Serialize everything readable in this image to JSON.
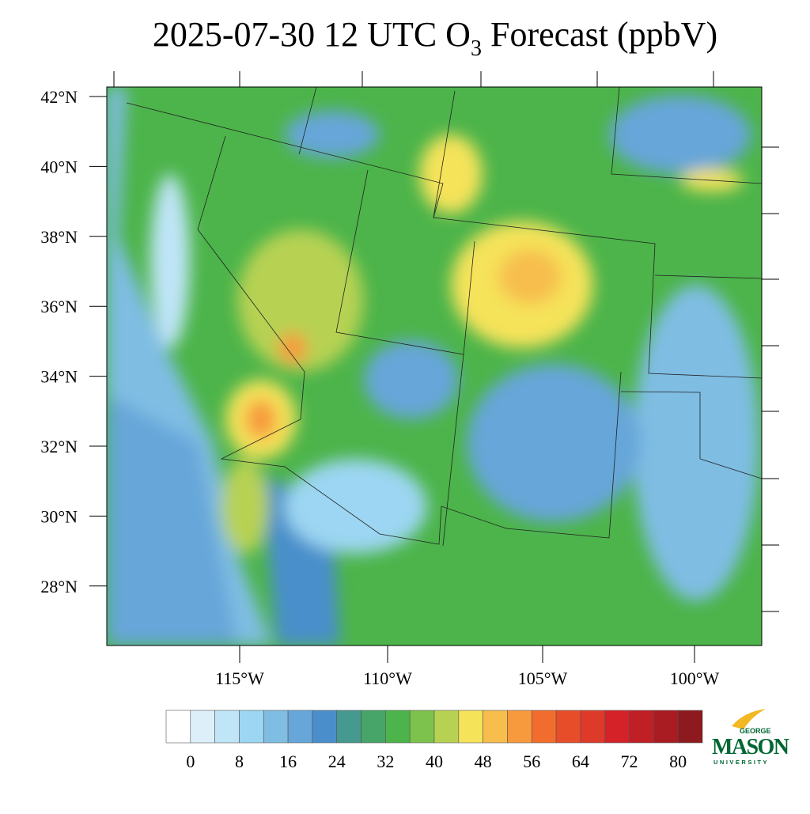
{
  "header": {
    "title_main": "2025-07-30 12 UTC O",
    "title_sub": "3",
    "title_tail": " Forecast (ppbV)"
  },
  "map": {
    "lat_labels": [
      "42°N",
      "40°N",
      "38°N",
      "36°N",
      "34°N",
      "32°N",
      "30°N",
      "28°N"
    ],
    "lon_labels": [
      "115°W",
      "110°W",
      "105°W",
      "100°W"
    ]
  },
  "colorbar": {
    "colors": [
      "#ffffff",
      "#ddf0fa",
      "#bfe5f7",
      "#9cd6f2",
      "#7fbde3",
      "#66a6d9",
      "#4a8fcb",
      "#45998f",
      "#47a56a",
      "#4cb44a",
      "#7dc24c",
      "#b7d253",
      "#f5e35a",
      "#f7be4d",
      "#f79a3d",
      "#f26d2d",
      "#e84d2a",
      "#de3a2a",
      "#d42228",
      "#c01f26",
      "#a81c22",
      "#8c1a1e"
    ],
    "ticks": [
      0,
      8,
      16,
      24,
      32,
      40,
      48,
      56,
      64,
      72,
      80
    ]
  },
  "logo": {
    "top": "GEORGE",
    "main": "MASON",
    "bottom": "UNIVERSITY"
  }
}
